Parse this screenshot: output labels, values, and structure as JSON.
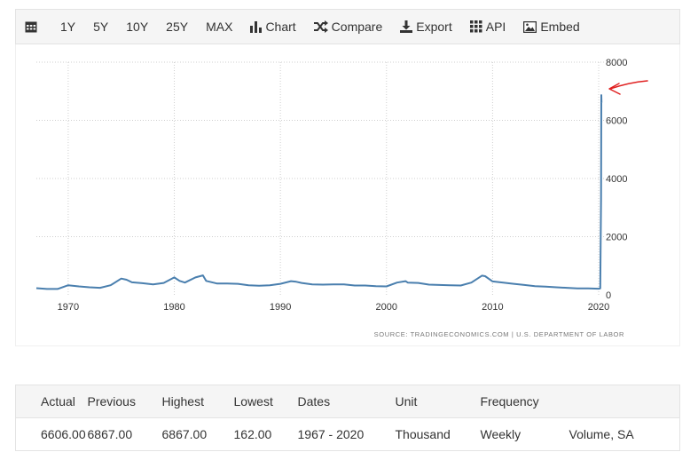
{
  "toolbar": {
    "items": [
      {
        "label": "",
        "icon": "calendar-icon"
      },
      {
        "label": "1Y"
      },
      {
        "label": "5Y"
      },
      {
        "label": "10Y"
      },
      {
        "label": "25Y"
      },
      {
        "label": "MAX"
      },
      {
        "label": "Chart",
        "icon": "bar-chart-icon"
      },
      {
        "label": "Compare",
        "icon": "shuffle-icon"
      },
      {
        "label": "Export",
        "icon": "download-icon"
      },
      {
        "label": "API",
        "icon": "grid-icon"
      },
      {
        "label": "Embed",
        "icon": "image-icon"
      }
    ]
  },
  "chart_data": {
    "type": "line",
    "xticks": [
      "1970",
      "1980",
      "1990",
      "2000",
      "2010",
      "2020"
    ],
    "yticks": [
      "0",
      "2000",
      "4000",
      "6000",
      "8000"
    ],
    "xlim": [
      1967,
      2020.5
    ],
    "ylim": [
      0,
      8000
    ],
    "grid": true,
    "line_color": "#4a7fae",
    "series": [
      {
        "x": [
          1967.0,
          1968.0,
          1969.0,
          1970.0,
          1971.0,
          1972.0,
          1973.0,
          1974.0,
          1975.0,
          1975.5,
          1976.0,
          1977.0,
          1978.0,
          1979.0,
          1980.0,
          1980.5,
          1981.0,
          1982.0,
          1982.7,
          1983.0,
          1984.0,
          1985.0,
          1986.0,
          1987.0,
          1988.0,
          1989.0,
          1990.0,
          1991.0,
          1991.5,
          1992.0,
          1993.0,
          1994.0,
          1995.0,
          1996.0,
          1997.0,
          1998.0,
          1999.0,
          2000.0,
          2001.0,
          2001.8,
          2002.0,
          2003.0,
          2004.0,
          2005.0,
          2006.0,
          2007.0,
          2008.0,
          2009.0,
          2009.3,
          2010.0,
          2011.0,
          2012.0,
          2013.0,
          2014.0,
          2015.0,
          2016.0,
          2017.0,
          2018.0,
          2019.0,
          2020.0,
          2020.15,
          2020.22,
          2020.25,
          2020.27
        ],
        "y": [
          230,
          200,
          200,
          330,
          290,
          260,
          240,
          330,
          560,
          520,
          430,
          400,
          360,
          410,
          600,
          480,
          420,
          600,
          670,
          480,
          390,
          390,
          380,
          330,
          310,
          330,
          380,
          470,
          450,
          410,
          360,
          350,
          360,
          360,
          320,
          320,
          300,
          290,
          420,
          470,
          420,
          410,
          350,
          340,
          330,
          320,
          420,
          660,
          640,
          460,
          420,
          380,
          340,
          300,
          280,
          260,
          240,
          220,
          220,
          210,
          220,
          3300,
          6867,
          6606
        ]
      }
    ]
  },
  "annotation": {
    "type": "arrow",
    "color": "#e02020"
  },
  "source": "SOURCE: TRADINGECONOMICS.COM | U.S. DEPARTMENT OF LABOR",
  "table": {
    "headers": [
      "Actual",
      "Previous",
      "Highest",
      "Lowest",
      "Dates",
      "Unit",
      "Frequency",
      ""
    ],
    "row": [
      "6606.00",
      "6867.00",
      "6867.00",
      "162.00",
      "1967 - 2020",
      "Thousand",
      "Weekly",
      "Volume, SA"
    ]
  }
}
